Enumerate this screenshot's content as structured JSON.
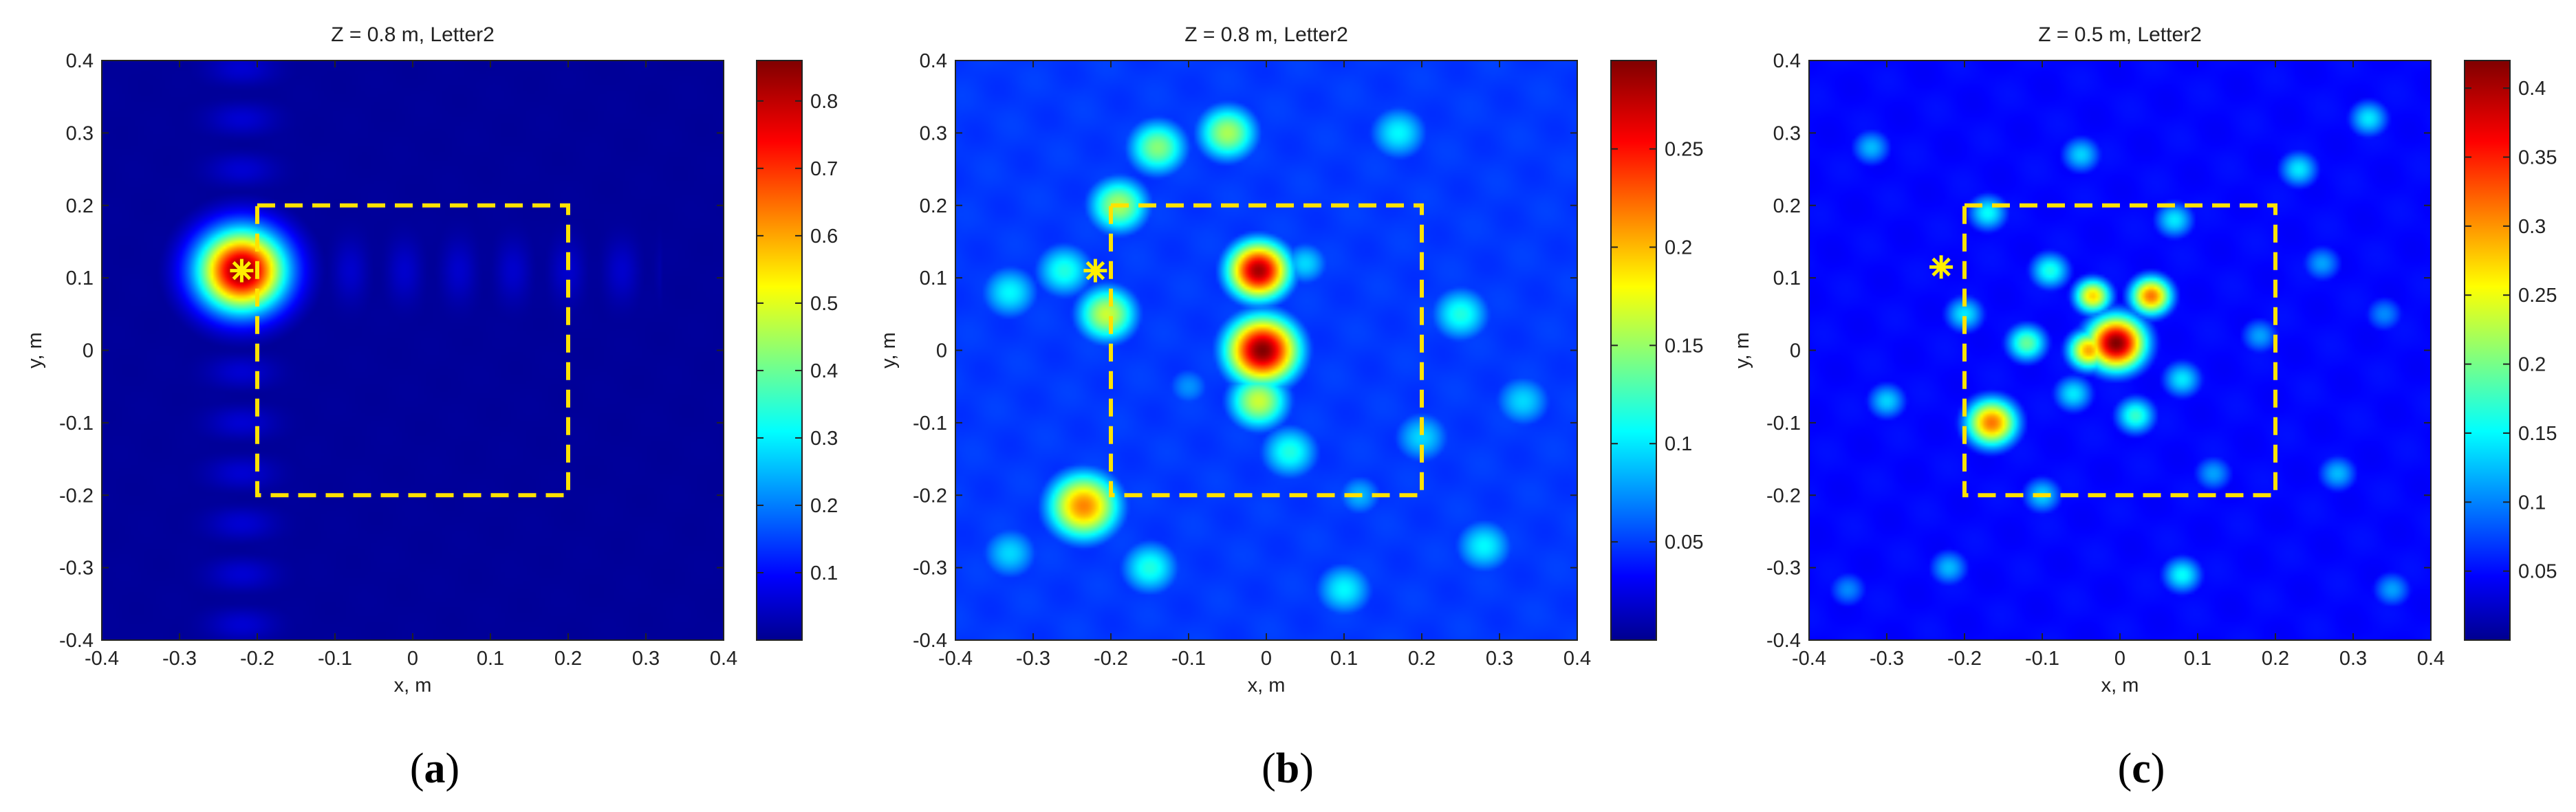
{
  "chart_data": [
    {
      "type": "heatmap",
      "panel": "(a)",
      "title": "Z = 0.8 m, Letter2",
      "xlabel": "x, m",
      "ylabel": "y, m",
      "xlim": [
        -0.4,
        0.4
      ],
      "ylim": [
        -0.4,
        0.4
      ],
      "xticks": [
        "-0.4",
        "-0.3",
        "-0.2",
        "-0.1",
        "0",
        "0.1",
        "0.2",
        "0.3",
        "0.4"
      ],
      "yticks": [
        "0.4",
        "0.3",
        "0.2",
        "0.1",
        "0",
        "-0.1",
        "-0.2",
        "-0.3",
        "-0.4"
      ],
      "colorbar": {
        "range": [
          0,
          0.86
        ],
        "ticks": [
          "0.8",
          "0.7",
          "0.6",
          "0.5",
          "0.4",
          "0.3",
          "0.2",
          "0.1"
        ],
        "tick_values": [
          0.8,
          0.7,
          0.6,
          0.5,
          0.4,
          0.3,
          0.2,
          0.1
        ]
      },
      "colormap": "jet",
      "region_box": {
        "x": [
          -0.2,
          0.2
        ],
        "y": [
          -0.2,
          0.2
        ],
        "style": "dashed",
        "color": "#ffe200"
      },
      "marker": {
        "x": -0.22,
        "y": 0.11,
        "symbol": "*",
        "color": "#ffee00"
      },
      "background_level": 0.02,
      "blobs": [
        {
          "x": -0.22,
          "y": 0.11,
          "sigma": 0.04,
          "v": 0.86
        }
      ]
    },
    {
      "type": "heatmap",
      "panel": "(b)",
      "title": "Z = 0.8 m, Letter2",
      "xlabel": "x, m",
      "ylabel": "y, m",
      "xlim": [
        -0.4,
        0.4
      ],
      "ylim": [
        -0.4,
        0.4
      ],
      "xticks": [
        "-0.4",
        "-0.3",
        "-0.2",
        "-0.1",
        "0",
        "0.1",
        "0.2",
        "0.3",
        "0.4"
      ],
      "yticks": [
        "0.4",
        "0.3",
        "0.2",
        "0.1",
        "0",
        "-0.1",
        "-0.2",
        "-0.3",
        "-0.4"
      ],
      "colorbar": {
        "range": [
          0,
          0.295
        ],
        "ticks": [
          "0.25",
          "0.2",
          "0.15",
          "0.1",
          "0.05"
        ],
        "tick_values": [
          0.25,
          0.2,
          0.15,
          0.1,
          0.05
        ]
      },
      "colormap": "jet",
      "region_box": {
        "x": [
          -0.2,
          0.2
        ],
        "y": [
          -0.2,
          0.2
        ],
        "style": "dashed",
        "color": "#ffe200"
      },
      "marker": {
        "x": -0.22,
        "y": 0.11,
        "symbol": "*",
        "color": "#ffee00"
      },
      "background_level": 0.05,
      "blobs": [
        {
          "x": -0.01,
          "y": 0.11,
          "sigma": 0.03,
          "v": 0.285
        },
        {
          "x": -0.005,
          "y": 0.0,
          "sigma": 0.035,
          "v": 0.295
        },
        {
          "x": -0.01,
          "y": -0.07,
          "sigma": 0.03,
          "v": 0.17
        },
        {
          "x": -0.235,
          "y": -0.215,
          "sigma": 0.035,
          "v": 0.22
        },
        {
          "x": -0.205,
          "y": 0.05,
          "sigma": 0.03,
          "v": 0.17
        },
        {
          "x": -0.19,
          "y": 0.2,
          "sigma": 0.03,
          "v": 0.16
        },
        {
          "x": -0.14,
          "y": 0.28,
          "sigma": 0.03,
          "v": 0.15
        },
        {
          "x": -0.26,
          "y": 0.11,
          "sigma": 0.03,
          "v": 0.12
        },
        {
          "x": -0.05,
          "y": 0.3,
          "sigma": 0.03,
          "v": 0.16
        },
        {
          "x": 0.05,
          "y": 0.12,
          "sigma": 0.025,
          "v": 0.1
        },
        {
          "x": 0.03,
          "y": -0.14,
          "sigma": 0.03,
          "v": 0.12
        },
        {
          "x": 0.17,
          "y": 0.3,
          "sigma": 0.03,
          "v": 0.11
        },
        {
          "x": 0.25,
          "y": 0.05,
          "sigma": 0.03,
          "v": 0.12
        },
        {
          "x": 0.28,
          "y": -0.27,
          "sigma": 0.03,
          "v": 0.11
        },
        {
          "x": -0.15,
          "y": -0.3,
          "sigma": 0.03,
          "v": 0.12
        },
        {
          "x": 0.1,
          "y": -0.33,
          "sigma": 0.03,
          "v": 0.11
        },
        {
          "x": -0.33,
          "y": 0.08,
          "sigma": 0.03,
          "v": 0.11
        },
        {
          "x": -0.33,
          "y": -0.28,
          "sigma": 0.03,
          "v": 0.1
        },
        {
          "x": 0.33,
          "y": -0.07,
          "sigma": 0.03,
          "v": 0.1
        },
        {
          "x": 0.12,
          "y": -0.2,
          "sigma": 0.025,
          "v": 0.09
        },
        {
          "x": -0.1,
          "y": -0.05,
          "sigma": 0.025,
          "v": 0.08
        },
        {
          "x": 0.2,
          "y": -0.12,
          "sigma": 0.03,
          "v": 0.1
        }
      ]
    },
    {
      "type": "heatmap",
      "panel": "(c)",
      "title": "Z = 0.5 m, Letter2",
      "xlabel": "x, m",
      "ylabel": "y, m",
      "xlim": [
        -0.4,
        0.4
      ],
      "ylim": [
        -0.4,
        0.4
      ],
      "xticks": [
        "-0.4",
        "-0.3",
        "-0.2",
        "-0.1",
        "0",
        "0.1",
        "0.2",
        "0.3",
        "0.4"
      ],
      "yticks": [
        "0.4",
        "0.3",
        "0.2",
        "0.1",
        "0",
        "-0.1",
        "-0.2",
        "-0.3",
        "-0.4"
      ],
      "colorbar": {
        "range": [
          0,
          0.42
        ],
        "ticks": [
          "0.4",
          "0.35",
          "0.3",
          "0.25",
          "0.2",
          "0.15",
          "0.1",
          "0.05"
        ],
        "tick_values": [
          0.4,
          0.35,
          0.3,
          0.25,
          0.2,
          0.15,
          0.1,
          0.05
        ]
      },
      "colormap": "jet",
      "region_box": {
        "x": [
          -0.2,
          0.2
        ],
        "y": [
          -0.2,
          0.2
        ],
        "style": "dashed",
        "color": "#ffe200"
      },
      "marker": {
        "x": -0.23,
        "y": 0.115,
        "symbol": "*",
        "color": "#ffee00"
      },
      "background_level": 0.05,
      "blobs": [
        {
          "x": -0.005,
          "y": 0.01,
          "sigma": 0.028,
          "v": 0.42
        },
        {
          "x": -0.04,
          "y": 0.0,
          "sigma": 0.02,
          "v": 0.3
        },
        {
          "x": 0.04,
          "y": 0.075,
          "sigma": 0.02,
          "v": 0.32
        },
        {
          "x": -0.035,
          "y": 0.075,
          "sigma": 0.018,
          "v": 0.28
        },
        {
          "x": -0.165,
          "y": -0.1,
          "sigma": 0.025,
          "v": 0.32
        },
        {
          "x": -0.12,
          "y": 0.01,
          "sigma": 0.02,
          "v": 0.2
        },
        {
          "x": -0.09,
          "y": 0.11,
          "sigma": 0.02,
          "v": 0.17
        },
        {
          "x": -0.2,
          "y": 0.05,
          "sigma": 0.02,
          "v": 0.15
        },
        {
          "x": 0.02,
          "y": -0.09,
          "sigma": 0.02,
          "v": 0.18
        },
        {
          "x": -0.06,
          "y": -0.06,
          "sigma": 0.02,
          "v": 0.15
        },
        {
          "x": 0.08,
          "y": -0.04,
          "sigma": 0.02,
          "v": 0.15
        },
        {
          "x": 0.07,
          "y": 0.18,
          "sigma": 0.02,
          "v": 0.15
        },
        {
          "x": -0.17,
          "y": 0.19,
          "sigma": 0.02,
          "v": 0.16
        },
        {
          "x": 0.23,
          "y": 0.25,
          "sigma": 0.02,
          "v": 0.15
        },
        {
          "x": 0.32,
          "y": 0.32,
          "sigma": 0.02,
          "v": 0.15
        },
        {
          "x": -0.05,
          "y": 0.27,
          "sigma": 0.02,
          "v": 0.14
        },
        {
          "x": 0.08,
          "y": -0.31,
          "sigma": 0.02,
          "v": 0.16
        },
        {
          "x": -0.3,
          "y": -0.07,
          "sigma": 0.02,
          "v": 0.14
        },
        {
          "x": -0.32,
          "y": 0.28,
          "sigma": 0.02,
          "v": 0.13
        },
        {
          "x": 0.28,
          "y": -0.17,
          "sigma": 0.02,
          "v": 0.13
        },
        {
          "x": -0.22,
          "y": -0.3,
          "sigma": 0.02,
          "v": 0.13
        },
        {
          "x": 0.18,
          "y": 0.02,
          "sigma": 0.02,
          "v": 0.12
        },
        {
          "x": 0.26,
          "y": 0.12,
          "sigma": 0.02,
          "v": 0.12
        },
        {
          "x": -0.1,
          "y": -0.2,
          "sigma": 0.02,
          "v": 0.14
        },
        {
          "x": 0.12,
          "y": -0.17,
          "sigma": 0.02,
          "v": 0.12
        },
        {
          "x": 0.35,
          "y": -0.33,
          "sigma": 0.02,
          "v": 0.12
        },
        {
          "x": -0.35,
          "y": -0.33,
          "sigma": 0.02,
          "v": 0.11
        },
        {
          "x": 0.34,
          "y": 0.05,
          "sigma": 0.02,
          "v": 0.11
        }
      ]
    }
  ]
}
